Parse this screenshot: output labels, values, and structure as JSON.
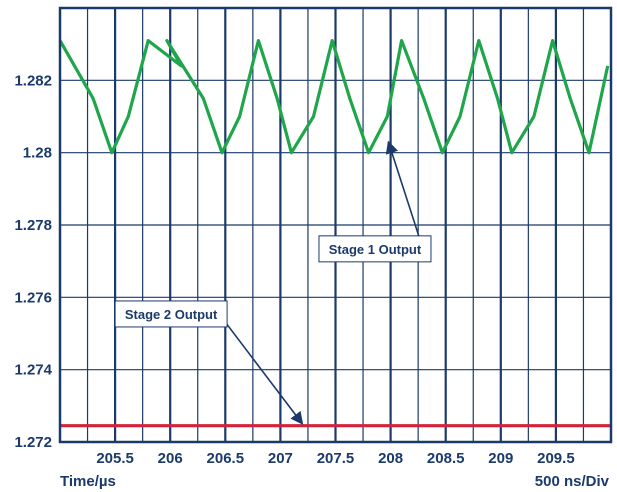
{
  "chart_data": {
    "type": "line",
    "xlabel": "Time/µs",
    "scale_label": "500 ns/Div",
    "xlim": [
      205.0,
      210.0
    ],
    "ylim": [
      1.272,
      1.284
    ],
    "x_ticks": [
      205.5,
      206,
      206.5,
      207,
      207.5,
      208,
      208.5,
      209,
      209.5
    ],
    "x_tick_labels": [
      "205.5",
      "206",
      "206.5",
      "207",
      "207.5",
      "208",
      "208.5",
      "209",
      "209.5"
    ],
    "y_ticks": [
      1.272,
      1.274,
      1.276,
      1.278,
      1.28,
      1.282
    ],
    "y_tick_labels": [
      "1.272",
      "1.274",
      "1.276",
      "1.278",
      "1.28",
      "1.282"
    ],
    "grid": true,
    "series": [
      {
        "name": "Stage 1 Output",
        "color": "#1fa54a",
        "x": [
          205.0,
          205.3,
          205.47,
          205.62,
          205.8,
          206.1,
          205.97,
          206.3,
          206.47,
          206.63,
          206.8,
          206.97,
          207.1,
          207.3,
          207.47,
          207.63,
          207.8,
          207.97,
          208.1,
          208.3,
          208.47,
          208.63,
          208.8,
          208.97,
          209.1,
          209.3,
          209.47,
          209.63,
          209.8,
          209.97
        ],
        "y": [
          1.2831,
          1.2815,
          1.28,
          1.281,
          1.2831,
          1.2824,
          1.2831,
          1.2815,
          1.28,
          1.281,
          1.2831,
          1.2815,
          1.28,
          1.281,
          1.2831,
          1.2815,
          1.28,
          1.281,
          1.2831,
          1.2815,
          1.28,
          1.281,
          1.2831,
          1.2815,
          1.28,
          1.281,
          1.2831,
          1.2815,
          1.28,
          1.2824
        ]
      },
      {
        "name": "Stage 2 Output",
        "color": "#d2233c",
        "x": [
          205.0,
          210.0
        ],
        "y": [
          1.27245,
          1.27245
        ]
      }
    ],
    "annotations": [
      {
        "text": "Stage 1 Output",
        "box_x": 207.35,
        "box_y": 1.2777,
        "arrow_to_x": 207.98,
        "arrow_to_y": 1.2803
      },
      {
        "text": "Stage 2 Output",
        "box_x": 205.5,
        "box_y": 1.2759,
        "arrow_to_x": 207.2,
        "arrow_to_y": 1.2725
      }
    ]
  },
  "colors": {
    "frame": "#1b3a6b",
    "grid": "#1b3a6b",
    "background": "#ffffff"
  }
}
